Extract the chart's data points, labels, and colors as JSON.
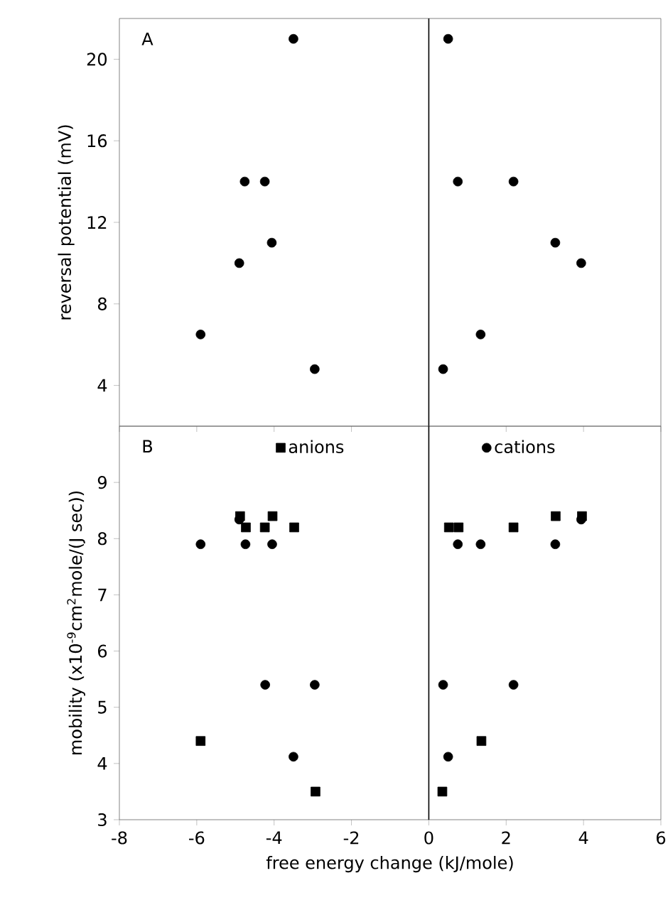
{
  "chart_data": [
    {
      "type": "scatter",
      "ylabel": "reversal potential (mV)",
      "annotations": [
        "A"
      ],
      "xlim": [
        -8,
        6
      ],
      "xticks": [
        -8,
        -6,
        -4,
        -2,
        0,
        2,
        4,
        6
      ],
      "ylim": [
        2,
        22
      ],
      "yticks": [
        4,
        8,
        12,
        16,
        20
      ],
      "tick_labels": "y",
      "ref_lines": [
        {
          "axis": "x",
          "value": 0,
          "color": "#000000"
        }
      ],
      "series": [
        {
          "marker": "circle",
          "color": "#000000",
          "x": [
            -3.5,
            -4.76,
            -4.24,
            -4.06,
            -4.9,
            -5.9,
            -2.95,
            0.5,
            0.75,
            2.19,
            3.27,
            3.94,
            1.34,
            0.37
          ],
          "values": [
            21,
            14,
            14,
            11,
            10,
            6.5,
            4.8,
            21,
            14,
            14,
            11,
            10,
            6.5,
            4.8
          ]
        }
      ]
    },
    {
      "type": "scatter",
      "xlabel": "free energy change (kJ/mole)",
      "ylabel": "mobility  (x10$^{-9}$cm$^{2}$mole/(J sec))",
      "annotations": [
        "B"
      ],
      "xlim": [
        -8,
        6
      ],
      "xticks": [
        -8,
        -6,
        -4,
        -2,
        0,
        2,
        4,
        6
      ],
      "ylim": [
        3,
        10
      ],
      "yticks": [
        3,
        4,
        5,
        6,
        7,
        8,
        9
      ],
      "legend": "top",
      "ref_lines": [
        {
          "axis": "x",
          "value": 0,
          "color": "#000000"
        }
      ],
      "series": [
        {
          "name": "anions",
          "marker": "square",
          "color": "#000000",
          "x": [
            -4.88,
            -4.73,
            -4.24,
            -4.04,
            -3.48,
            -5.9,
            -2.93,
            0.52,
            0.77,
            2.19,
            3.28,
            3.96,
            1.36,
            0.35
          ],
          "values": [
            8.4,
            8.2,
            8.2,
            8.4,
            8.2,
            4.4,
            3.5,
            8.2,
            8.2,
            8.2,
            8.4,
            8.4,
            4.4,
            3.5
          ]
        },
        {
          "name": "cations",
          "marker": "circle",
          "color": "#000000",
          "x": [
            -5.9,
            -4.74,
            -4.05,
            -4.9,
            -4.23,
            -2.95,
            -3.5,
            0.37,
            2.19,
            0.5,
            0.75,
            1.34,
            3.27,
            3.94
          ],
          "values": [
            7.9,
            7.9,
            7.9,
            8.34,
            5.4,
            5.4,
            4.12,
            5.4,
            5.4,
            4.12,
            7.9,
            7.9,
            7.9,
            8.34
          ]
        }
      ]
    }
  ]
}
